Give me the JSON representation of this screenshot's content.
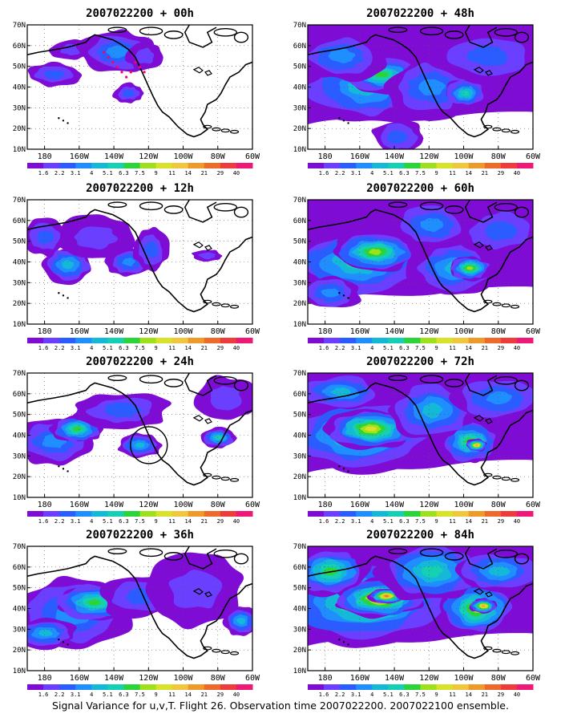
{
  "colorbar": {
    "labels": [
      "1.6",
      "2.2",
      "3.1",
      "4",
      "5.1",
      "6.3",
      "7.5",
      "9",
      "11",
      "14",
      "21",
      "29",
      "40"
    ],
    "colors": [
      "#7e0cd5",
      "#6b3fff",
      "#2a5cff",
      "#1f8fff",
      "#14b9d8",
      "#15d0b2",
      "#2bd43a",
      "#9ee01b",
      "#d8e22a",
      "#f0c63d",
      "#ee9a2b",
      "#ee6a2b",
      "#ee3b3b",
      "#ee1877"
    ]
  },
  "axes": {
    "lat_labels": [
      "70N",
      "60N",
      "50N",
      "40N",
      "30N",
      "20N",
      "10N"
    ],
    "lon_labels": [
      "180",
      "160W",
      "140W",
      "120W",
      "100W",
      "80W",
      "60W"
    ],
    "lat_range": [
      10,
      70
    ],
    "lon_range": [
      -190,
      -60
    ]
  },
  "panels": [
    {
      "title": "2007022200 + 00h",
      "col": 0,
      "row": 0,
      "level": 0
    },
    {
      "title": "2007022200 + 12h",
      "col": 0,
      "row": 1,
      "level": 1
    },
    {
      "title": "2007022200 + 24h",
      "col": 0,
      "row": 2,
      "level": 2
    },
    {
      "title": "2007022200 + 36h",
      "col": 0,
      "row": 3,
      "level": 3
    },
    {
      "title": "2007022200 + 48h",
      "col": 1,
      "row": 0,
      "level": 4
    },
    {
      "title": "2007022200 + 60h",
      "col": 1,
      "row": 1,
      "level": 5
    },
    {
      "title": "2007022200 + 72h",
      "col": 1,
      "row": 2,
      "level": 6
    },
    {
      "title": "2007022200 + 84h",
      "col": 1,
      "row": 3,
      "level": 7
    }
  ],
  "footer": "Signal Variance for u,v,T. Flight 26. Observation time 2007022200. 2007022100 ensemble."
}
